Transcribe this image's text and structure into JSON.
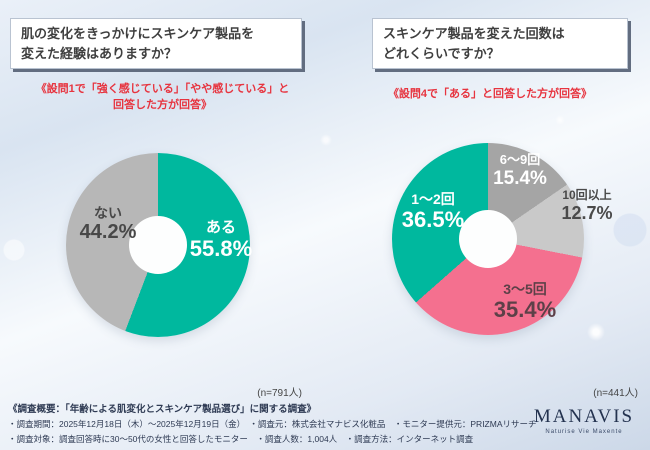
{
  "charts": [
    {
      "title": "肌の変化をきっかけにスキンケア製品を\n変えた経験はありますか？",
      "subtitle": "《設問1で「強く感じている」「やや感じている」と\n回答した方が回答》",
      "n_label": "(n=791人)"
    },
    {
      "title": "スキンケア製品を変えた回数は\nどれくらいですか？",
      "subtitle": "《設問4で「ある」と回答した方が回答》",
      "n_label": "(n=441人)"
    }
  ],
  "chart_data": [
    {
      "type": "pie",
      "donut": true,
      "title": "肌の変化をきっかけにスキンケア製品を変えた経験はありますか？",
      "n": 791,
      "legend_position": "none",
      "segments": [
        {
          "label": "ある",
          "value": 55.8,
          "pct_label": "55.8%",
          "color": "#00b89e",
          "label_color": "#ffffff"
        },
        {
          "label": "ない",
          "value": 44.2,
          "pct_label": "44.2%",
          "color": "#b7b7b7",
          "label_color": "#484848"
        }
      ]
    },
    {
      "type": "pie",
      "donut": true,
      "title": "スキンケア製品を変えた回数はどれくらいですか？",
      "n": 441,
      "legend_position": "none",
      "segments": [
        {
          "label": "6〜9回",
          "value": 15.4,
          "pct_label": "15.4%",
          "color": "#a5a5a5",
          "label_color": "#ffffff"
        },
        {
          "label": "10回以上",
          "value": 12.7,
          "pct_label": "12.7%",
          "color": "#c9c9c9",
          "label_color": "#4a4a4a"
        },
        {
          "label": "3〜5回",
          "value": 35.4,
          "pct_label": "35.4%",
          "color": "#f4708f",
          "label_color": "#5d4048"
        },
        {
          "label": "1〜2回",
          "value": 36.5,
          "pct_label": "36.5%",
          "color": "#00b89e",
          "label_color": "#ffffff"
        }
      ]
    }
  ],
  "footer": {
    "line1": "《調査概要：「年齢による肌変化とスキンケア製品選び」に関する調査》",
    "line2": "・調査期間：2025年12月18日（木）〜2025年12月19日（金）　・調査元：株式会社マナビス化粧品　・モニター提供元：PRIZMAリサーチ",
    "line3": "・調査対象：調査回答時に30〜50代の女性と回答したモニター　・調査人数：1,004人　・調査方法：インターネット調査"
  },
  "logo": {
    "name": "MANAVIS",
    "tagline": "Naturise Vie Maxente"
  }
}
